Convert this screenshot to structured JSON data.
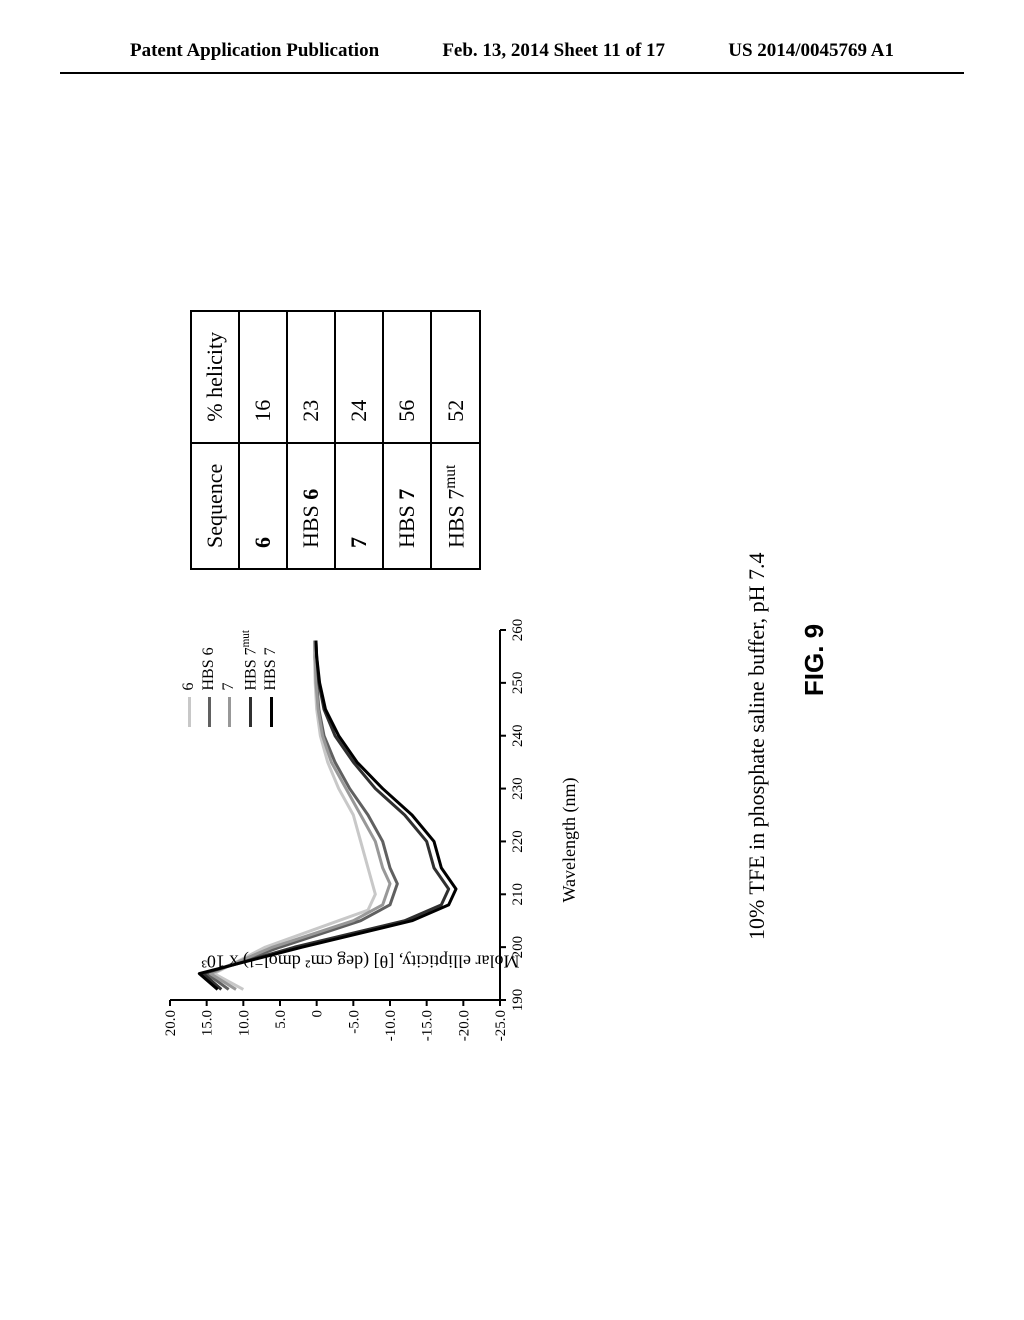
{
  "header": {
    "left": "Patent Application Publication",
    "center": "Feb. 13, 2014  Sheet 11 of 17",
    "right": "US 2014/0045769 A1"
  },
  "chart": {
    "type": "line",
    "y_label": "Molar ellipticity, [θ] (deg cm² dmol⁻¹) x 10³",
    "x_label": "Wavelength (nm)",
    "xlim": [
      190,
      260
    ],
    "ylim": [
      -25,
      20
    ],
    "x_ticks": [
      190,
      200,
      210,
      220,
      230,
      240,
      250,
      260
    ],
    "y_ticks": [
      "20.0",
      "15.0",
      "10.0",
      "5.0",
      "0",
      "-5.0",
      "-10.0",
      "-15.0",
      "-20.0",
      "-25.0"
    ],
    "background_color": "#ffffff",
    "axis_color": "#000000",
    "line_width": 3,
    "series": [
      {
        "name": "6",
        "color": "#c8c8c8",
        "points": [
          [
            192,
            10
          ],
          [
            195,
            14
          ],
          [
            200,
            7
          ],
          [
            205,
            -3
          ],
          [
            207,
            -7
          ],
          [
            210,
            -8
          ],
          [
            215,
            -7
          ],
          [
            220,
            -6
          ],
          [
            225,
            -5
          ],
          [
            230,
            -3
          ],
          [
            235,
            -1.5
          ],
          [
            240,
            -0.5
          ],
          [
            245,
            0
          ],
          [
            250,
            0.2
          ],
          [
            255,
            0.3
          ],
          [
            258,
            0.3
          ]
        ]
      },
      {
        "name": "HBS 6",
        "color": "#606060",
        "points": [
          [
            192,
            12
          ],
          [
            195,
            15
          ],
          [
            200,
            5
          ],
          [
            205,
            -6
          ],
          [
            208,
            -10
          ],
          [
            212,
            -11
          ],
          [
            215,
            -10
          ],
          [
            220,
            -9
          ],
          [
            225,
            -7
          ],
          [
            230,
            -4.5
          ],
          [
            235,
            -2.5
          ],
          [
            240,
            -1
          ],
          [
            245,
            -0.3
          ],
          [
            250,
            0
          ],
          [
            255,
            0.2
          ],
          [
            258,
            0.2
          ]
        ]
      },
      {
        "name": "7",
        "color": "#989898",
        "points": [
          [
            192,
            11
          ],
          [
            195,
            14.5
          ],
          [
            200,
            6
          ],
          [
            205,
            -5
          ],
          [
            208,
            -9
          ],
          [
            212,
            -10
          ],
          [
            215,
            -9
          ],
          [
            220,
            -8
          ],
          [
            225,
            -6
          ],
          [
            230,
            -4
          ],
          [
            235,
            -2
          ],
          [
            240,
            -0.8
          ],
          [
            245,
            -0.2
          ],
          [
            250,
            0.1
          ],
          [
            255,
            0.2
          ],
          [
            258,
            0.3
          ]
        ]
      },
      {
        "name": "HBS 7mut",
        "color": "#303030",
        "points": [
          [
            192,
            13
          ],
          [
            195,
            15.5
          ],
          [
            200,
            3
          ],
          [
            205,
            -12
          ],
          [
            208,
            -17
          ],
          [
            211,
            -18
          ],
          [
            215,
            -16
          ],
          [
            220,
            -15
          ],
          [
            225,
            -12
          ],
          [
            230,
            -8
          ],
          [
            235,
            -5
          ],
          [
            240,
            -2.5
          ],
          [
            245,
            -1
          ],
          [
            250,
            -0.3
          ],
          [
            255,
            0
          ],
          [
            258,
            0.1
          ]
        ]
      },
      {
        "name": "HBS 7",
        "color": "#000000",
        "points": [
          [
            192,
            13.5
          ],
          [
            195,
            16
          ],
          [
            200,
            2
          ],
          [
            205,
            -13
          ],
          [
            208,
            -18
          ],
          [
            211,
            -19
          ],
          [
            215,
            -17
          ],
          [
            220,
            -16
          ],
          [
            225,
            -13
          ],
          [
            230,
            -9
          ],
          [
            235,
            -5.5
          ],
          [
            240,
            -3
          ],
          [
            245,
            -1.2
          ],
          [
            250,
            -0.4
          ],
          [
            255,
            0
          ],
          [
            258,
            0.1
          ]
        ]
      }
    ]
  },
  "table": {
    "columns": [
      "Sequence",
      "% helicity"
    ],
    "rows": [
      [
        "6",
        "16"
      ],
      [
        "HBS 6",
        "23"
      ],
      [
        "7",
        "24"
      ],
      [
        "HBS 7",
        "56"
      ],
      [
        "HBS 7ᵐᵘᵗ",
        "52"
      ]
    ]
  },
  "caption": "10% TFE in phosphate saline buffer, pH 7.4",
  "figure_label": "FIG. 9"
}
